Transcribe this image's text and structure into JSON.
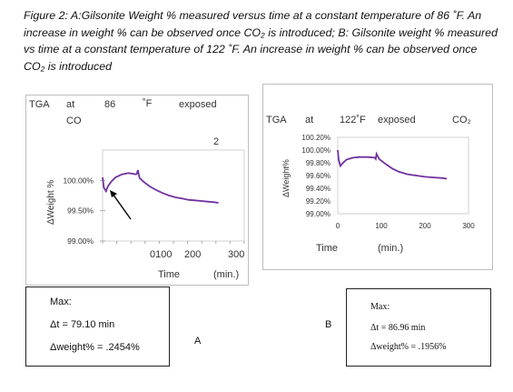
{
  "caption": {
    "line1": "Figure 2: A:Gilsonite Weight % measured versus time at a constant temperature of 86 ˚F. An",
    "line2": "increase in weight % can be observed once CO₂ is introduced; B: Gilsonite weight % measured",
    "line3": "vs time at a constant temperature of 122 ˚F. An increase in weight % can be observed once",
    "line4": "CO₂ is introduced"
  },
  "panel_a": {
    "title_tga": "TGA",
    "title_at": "at",
    "title_temp": "86",
    "title_unit": "˚F",
    "title_exposed": "exposed",
    "title_co": "CO",
    "title_sub": "2",
    "ylabel": "ΔWeight  %",
    "x_ticks": [
      "0100",
      "200",
      "300"
    ],
    "xlabel_time": "Time",
    "xlabel_unit": "(min.)"
  },
  "panel_b": {
    "title_tga": "TGA",
    "title_at": "at",
    "title_temp": "122˚F",
    "title_exposed": "exposed",
    "title_co2": "CO₂",
    "ylabel": "ΔWeight%",
    "x_ticks": [
      "0",
      "100",
      "200",
      "300"
    ],
    "xlabel_time": "Time",
    "xlabel_unit": "(min.)"
  },
  "chart_data": [
    {
      "type": "line",
      "y_ticks": [
        "100.00%",
        "99.50%",
        "99.00%"
      ],
      "x_ticks": [
        "0100",
        "200",
        "300"
      ],
      "ylim": [
        99.0,
        100.5
      ],
      "xlim": [
        0,
        330
      ],
      "color": "#7030a0",
      "arrow_color": "#000000",
      "series": [
        {
          "x": [
            0,
            3,
            8,
            12,
            20,
            30,
            45,
            60,
            70,
            78,
            80,
            82,
            86,
            95,
            110,
            125,
            140,
            155,
            170,
            185,
            200,
            215,
            230,
            245,
            260,
            270
          ],
          "y": [
            100.05,
            99.88,
            99.82,
            99.9,
            99.98,
            100.05,
            100.1,
            100.12,
            100.11,
            100.1,
            100.11,
            100.17,
            100.04,
            99.98,
            99.9,
            99.84,
            99.79,
            99.75,
            99.72,
            99.7,
            99.68,
            99.67,
            99.66,
            99.65,
            99.64,
            99.63
          ]
        }
      ]
    },
    {
      "type": "line",
      "y_ticks": [
        "100.20%",
        "100.00%",
        "99.80%",
        "99.60%",
        "99.40%",
        "99.20%",
        "99.00%"
      ],
      "x_ticks": [
        "0",
        "100",
        "200",
        "300"
      ],
      "ylim": [
        99.0,
        100.2
      ],
      "xlim": [
        0,
        300
      ],
      "color": "#7030a0",
      "series": [
        {
          "x": [
            0,
            2,
            6,
            12,
            20,
            35,
            50,
            70,
            85,
            87,
            89,
            95,
            110,
            125,
            140,
            160,
            180,
            200,
            220,
            240,
            250
          ],
          "y": [
            100.0,
            99.85,
            99.75,
            99.8,
            99.85,
            99.88,
            99.89,
            99.89,
            99.88,
            99.86,
            99.94,
            99.86,
            99.78,
            99.71,
            99.66,
            99.62,
            99.6,
            99.58,
            99.57,
            99.56,
            99.55
          ]
        }
      ]
    }
  ],
  "box_a": {
    "max": "Max:",
    "dt": "Δt = 79.10 min",
    "dw": "Δweight% = .2454%"
  },
  "label_a": "A",
  "label_b": "B",
  "box_b": {
    "max": "Max:",
    "dt": "Δt = 86.96 min",
    "dw": "Δweight% = .1956%"
  }
}
